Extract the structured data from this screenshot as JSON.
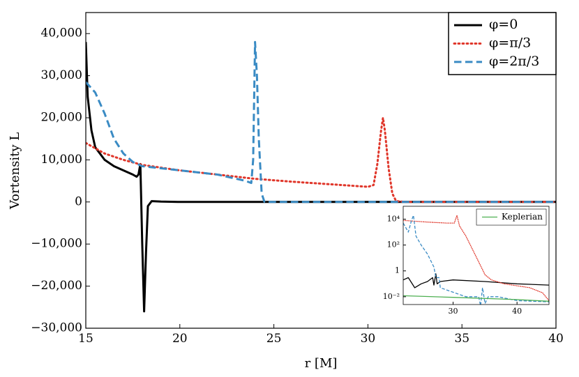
{
  "chart_data": [
    {
      "type": "line",
      "xlabel": "r [M]",
      "ylabel": "Vortensity L",
      "xlim": [
        15,
        40
      ],
      "xticks": [
        15,
        20,
        25,
        30,
        35,
        40
      ],
      "ylim": [
        -30000,
        45000
      ],
      "yticks": [
        {
          "value": -30000,
          "label": "−30,000"
        },
        {
          "value": -20000,
          "label": "−20,000"
        },
        {
          "value": -10000,
          "label": "−10,000"
        },
        0,
        {
          "value": 10000,
          "label": "10,000"
        },
        {
          "value": 20000,
          "label": "20,000"
        },
        {
          "value": 30000,
          "label": "30,000"
        },
        {
          "value": 40000,
          "label": "40,000"
        }
      ],
      "legend": "upper right",
      "series": [
        {
          "name": "φ=0",
          "color": "#000000",
          "dash": "solid",
          "x": [
            15,
            15.1,
            15.3,
            15.5,
            16,
            16.5,
            17,
            17.5,
            17.7,
            17.8,
            17.9,
            18.0,
            18.1,
            18.2,
            18.3,
            18.5,
            19,
            20,
            25,
            30,
            40
          ],
          "values": [
            38000,
            25000,
            17000,
            13000,
            10000,
            8500,
            7500,
            6500,
            6000,
            6500,
            9000,
            -10000,
            -26000,
            -12000,
            -1000,
            200,
            100,
            0,
            0,
            0,
            0
          ]
        },
        {
          "name": "φ=π/3",
          "color": "#e0362a",
          "dash": "dotted",
          "x": [
            15,
            16,
            17,
            18,
            20,
            22,
            24,
            26,
            28,
            30,
            30.3,
            30.5,
            30.7,
            30.8,
            30.9,
            31.1,
            31.3,
            31.5,
            32,
            40
          ],
          "values": [
            14000,
            11500,
            10000,
            8800,
            7500,
            6500,
            5500,
            4800,
            4200,
            3600,
            4000,
            9000,
            17000,
            20000,
            17000,
            8000,
            2000,
            200,
            0,
            0
          ]
        },
        {
          "name": "φ=2π/3",
          "color": "#3a8bc4",
          "dash": "dashed",
          "x": [
            15,
            15.5,
            16,
            16.5,
            17,
            17.5,
            18,
            20,
            22,
            23.5,
            23.8,
            23.9,
            24,
            24.1,
            24.2,
            24.35,
            24.5,
            40
          ],
          "values": [
            28500,
            26000,
            21000,
            15000,
            11500,
            9500,
            8500,
            7500,
            6500,
            5000,
            4500,
            10000,
            38000,
            30000,
            15000,
            2000,
            0,
            0
          ]
        }
      ]
    },
    {
      "type": "line",
      "ylog": true,
      "xlim": [
        22.2,
        45
      ],
      "xticks": [
        30,
        40
      ],
      "ylim": [
        0.0025,
        100000
      ],
      "yticks": [
        {
          "value": 0.01,
          "label": "10⁻²"
        },
        1,
        {
          "value": 100,
          "label": "10²"
        },
        {
          "value": 10000,
          "label": "10⁴"
        }
      ],
      "legend": "upper right",
      "series": [
        {
          "color": "#000000",
          "dash": "solid",
          "x": [
            22.2,
            23,
            24,
            25,
            26,
            26.8,
            27,
            27.3,
            27.5,
            28,
            30,
            35,
            40,
            45
          ],
          "values": [
            0.2,
            0.3,
            0.05,
            0.1,
            0.15,
            0.3,
            0.08,
            0.6,
            0.1,
            0.15,
            0.2,
            0.15,
            0.1,
            0.08
          ]
        },
        {
          "color": "#e0362a",
          "dash": "dotted",
          "x": [
            22.2,
            26,
            29,
            30.2,
            30.6,
            31,
            32,
            33,
            34,
            35,
            36,
            38,
            42,
            44,
            45
          ],
          "values": [
            8000,
            6000,
            5000,
            5000,
            20000,
            3000,
            500,
            50,
            5,
            0.5,
            0.2,
            0.1,
            0.05,
            0.02,
            0.005
          ]
        },
        {
          "color": "#3a8bc4",
          "dash": "dashed",
          "x": [
            22.2,
            23,
            23.5,
            23.8,
            24.2,
            25,
            26,
            27,
            27.3,
            27.8,
            28,
            32,
            34,
            34.3,
            34.6,
            35,
            35.5,
            37,
            40,
            45
          ],
          "values": [
            5000,
            1000,
            8000,
            20000,
            500,
            100,
            20,
            2,
            0.3,
            0.3,
            0.05,
            0.01,
            0.01,
            0.002,
            0.05,
            0.003,
            0.01,
            0.01,
            0.005,
            0.004
          ]
        },
        {
          "name": "Keplerian",
          "color": "#4caf50",
          "dash": "solid",
          "x": [
            22.2,
            30,
            40,
            45
          ],
          "values": [
            0.012,
            0.009,
            0.006,
            0.0045
          ]
        }
      ]
    }
  ]
}
